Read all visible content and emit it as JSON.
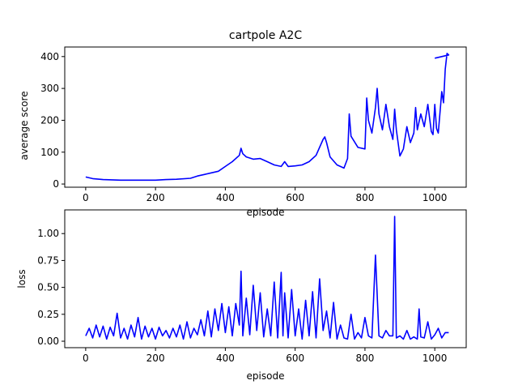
{
  "chart_data": [
    {
      "type": "line",
      "title": "cartpole A2C",
      "xlabel": "episode",
      "ylabel": "average score",
      "xlim": [
        -60,
        1090
      ],
      "ylim": [
        -10,
        430
      ],
      "xticks": [
        0,
        200,
        400,
        600,
        800,
        1000
      ],
      "yticks": [
        0,
        100,
        200,
        300,
        400
      ],
      "grid": false,
      "color": "#0000ff",
      "x": [
        0,
        20,
        50,
        100,
        150,
        200,
        230,
        260,
        300,
        320,
        340,
        360,
        380,
        400,
        420,
        440,
        445,
        450,
        460,
        480,
        500,
        520,
        540,
        560,
        570,
        580,
        600,
        620,
        640,
        660,
        680,
        685,
        690,
        700,
        720,
        740,
        750,
        755,
        760,
        780,
        800,
        805,
        810,
        820,
        830,
        835,
        840,
        850,
        860,
        870,
        880,
        885,
        890,
        900,
        910,
        920,
        930,
        940,
        945,
        950,
        960,
        970,
        980,
        990,
        995,
        1000,
        1005,
        1010,
        1020,
        1025,
        1030,
        1035,
        1040,
        1000
      ],
      "y": [
        22,
        17,
        14,
        12,
        12,
        12,
        14,
        15,
        18,
        25,
        30,
        35,
        40,
        55,
        70,
        90,
        112,
        95,
        85,
        78,
        80,
        70,
        60,
        55,
        70,
        55,
        57,
        60,
        70,
        90,
        140,
        148,
        130,
        85,
        60,
        50,
        80,
        220,
        150,
        115,
        110,
        270,
        200,
        160,
        240,
        300,
        220,
        170,
        250,
        180,
        140,
        235,
        170,
        88,
        110,
        180,
        130,
        160,
        240,
        170,
        220,
        180,
        250,
        165,
        155,
        250,
        175,
        160,
        290,
        255,
        360,
        410,
        405,
        395
      ]
    },
    {
      "type": "line",
      "title": "",
      "xlabel": "episode",
      "ylabel": "loss",
      "xlim": [
        -60,
        1090
      ],
      "ylim": [
        -0.06,
        1.22
      ],
      "xticks": [
        0,
        200,
        400,
        600,
        800,
        1000
      ],
      "yticks": [
        0.0,
        0.25,
        0.5,
        0.75,
        1.0
      ],
      "grid": false,
      "color": "#0000ff",
      "x": [
        0,
        10,
        20,
        30,
        40,
        50,
        60,
        70,
        80,
        90,
        100,
        110,
        120,
        130,
        140,
        150,
        160,
        170,
        180,
        190,
        200,
        210,
        220,
        230,
        240,
        250,
        260,
        270,
        280,
        290,
        300,
        310,
        320,
        330,
        340,
        350,
        360,
        370,
        380,
        390,
        400,
        410,
        420,
        430,
        440,
        445,
        450,
        460,
        470,
        480,
        490,
        500,
        510,
        520,
        530,
        540,
        550,
        560,
        565,
        570,
        580,
        590,
        600,
        610,
        620,
        630,
        640,
        650,
        660,
        670,
        680,
        690,
        700,
        710,
        720,
        730,
        740,
        750,
        760,
        770,
        780,
        790,
        800,
        810,
        820,
        830,
        840,
        850,
        860,
        870,
        880,
        885,
        890,
        900,
        910,
        920,
        930,
        940,
        950,
        955,
        960,
        970,
        980,
        990,
        1000,
        1010,
        1020,
        1030,
        1040
      ],
      "y": [
        0.05,
        0.12,
        0.03,
        0.15,
        0.04,
        0.14,
        0.02,
        0.13,
        0.05,
        0.26,
        0.03,
        0.12,
        0.02,
        0.15,
        0.04,
        0.22,
        0.02,
        0.14,
        0.04,
        0.12,
        0.02,
        0.13,
        0.05,
        0.1,
        0.03,
        0.12,
        0.04,
        0.15,
        0.02,
        0.18,
        0.03,
        0.12,
        0.06,
        0.2,
        0.05,
        0.28,
        0.04,
        0.3,
        0.1,
        0.35,
        0.08,
        0.32,
        0.05,
        0.35,
        0.15,
        0.65,
        0.05,
        0.4,
        0.06,
        0.52,
        0.1,
        0.45,
        0.04,
        0.3,
        0.05,
        0.55,
        0.03,
        0.64,
        0.05,
        0.45,
        0.03,
        0.48,
        0.05,
        0.3,
        0.02,
        0.38,
        0.05,
        0.46,
        0.03,
        0.58,
        0.1,
        0.28,
        0.03,
        0.36,
        0.02,
        0.15,
        0.03,
        0.02,
        0.25,
        0.02,
        0.08,
        0.03,
        0.22,
        0.05,
        0.03,
        0.8,
        0.05,
        0.03,
        0.1,
        0.05,
        0.05,
        1.16,
        0.03,
        0.05,
        0.02,
        0.1,
        0.02,
        0.04,
        0.02,
        0.3,
        0.04,
        0.03,
        0.18,
        0.02,
        0.06,
        0.12,
        0.03,
        0.08,
        0.08
      ]
    }
  ]
}
